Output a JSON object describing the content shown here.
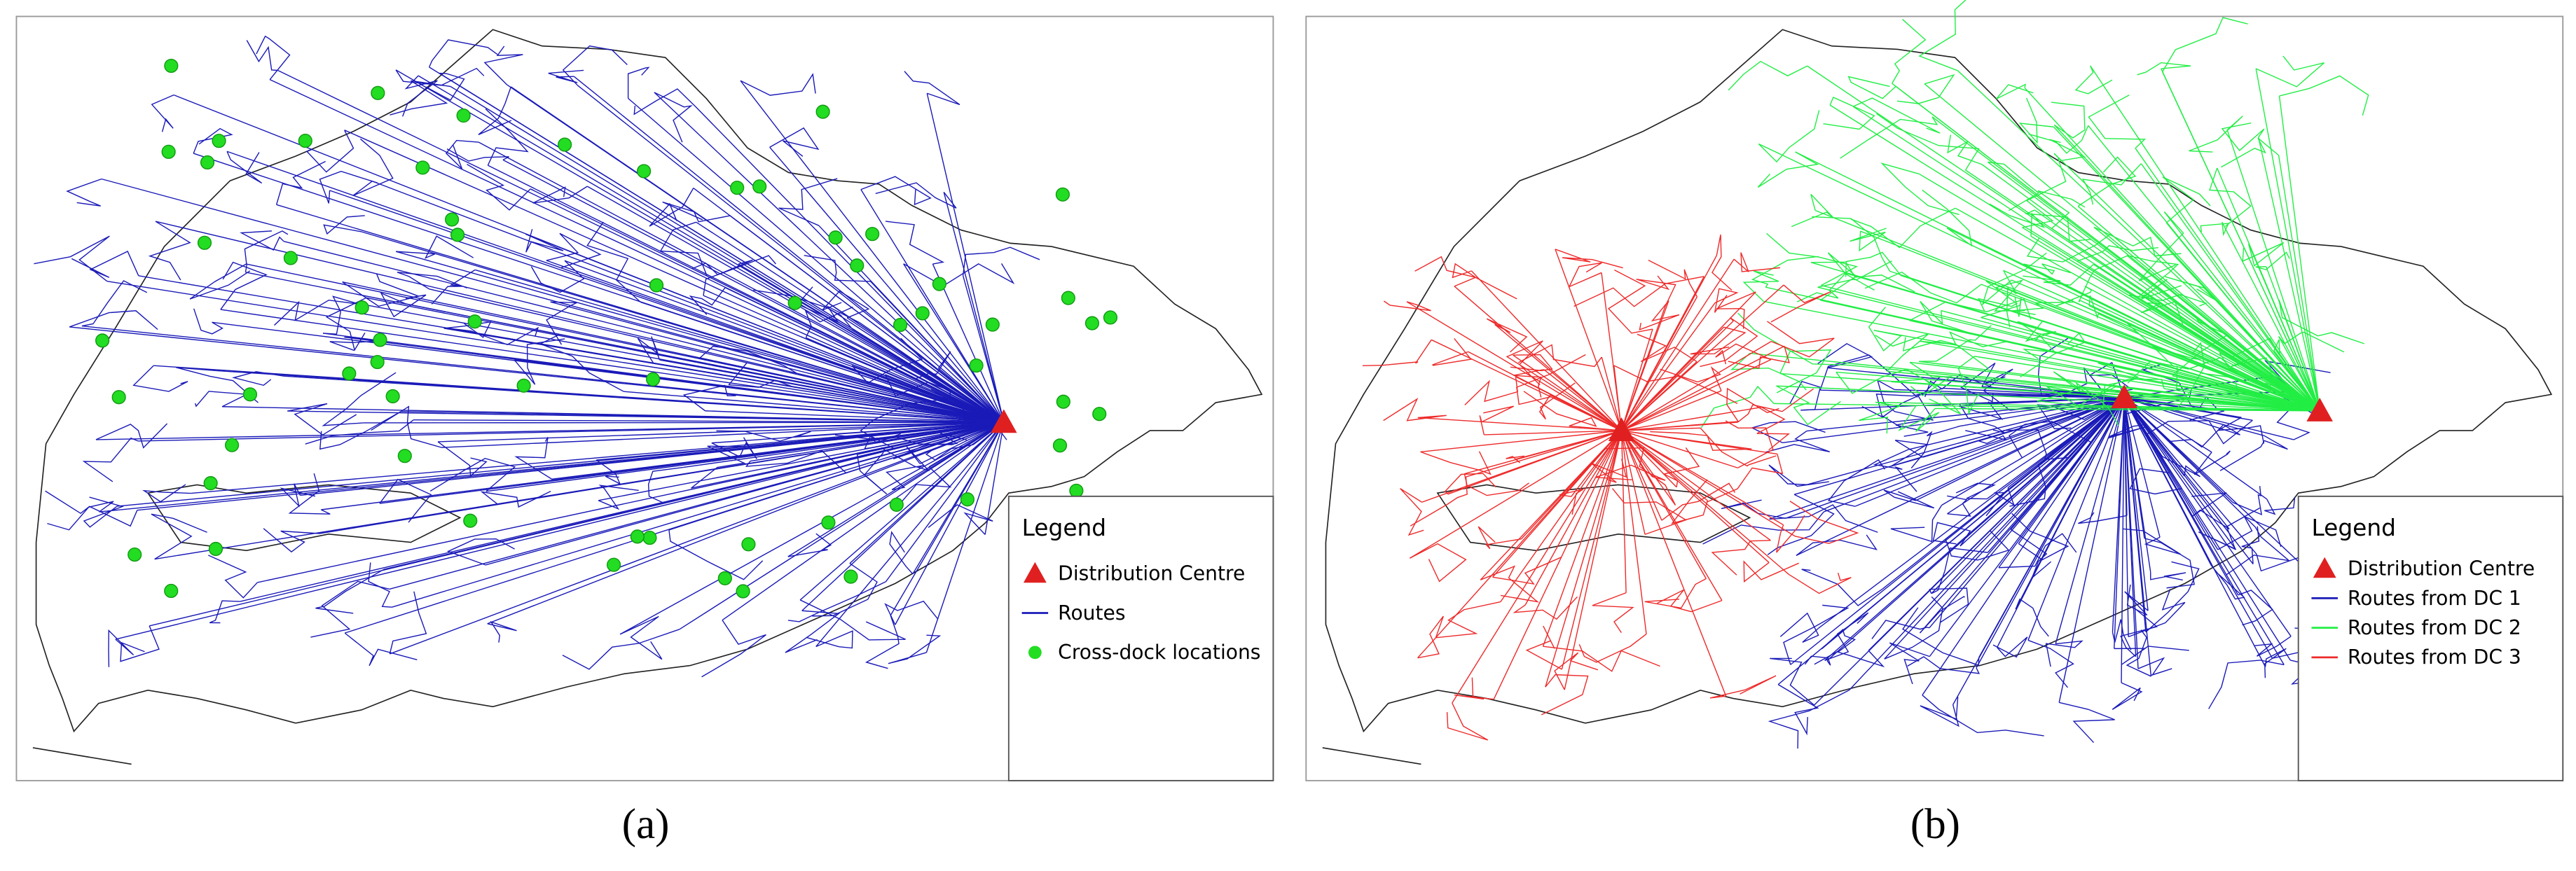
{
  "panels": [
    {
      "label": "(a)",
      "legend": {
        "title": "Legend",
        "items": [
          "Distribution Centre",
          "Routes",
          "Cross-dock locations"
        ]
      }
    },
    {
      "label": "(b)",
      "legend": {
        "title": "Legend",
        "items": [
          "Distribution Centre",
          "Routes from DC 1",
          "Routes from DC 2",
          "Routes from DC 3"
        ]
      }
    }
  ]
}
